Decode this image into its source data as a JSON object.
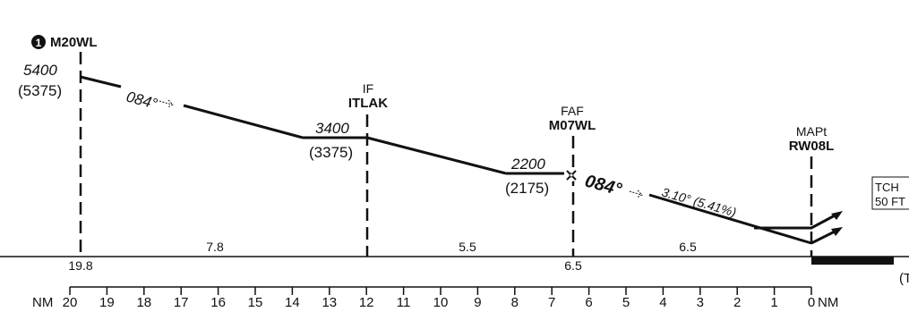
{
  "fixes": {
    "start": {
      "badge_num": "1",
      "ident": "M20WL",
      "alt": "5400",
      "msa": "(5375)",
      "course": "084°",
      "dist_mark": "19.8"
    },
    "if_fix": {
      "role": "IF",
      "ident": "ITLAK",
      "alt": "3400",
      "msa": "(3375)"
    },
    "faf": {
      "role": "FAF",
      "ident": "M07WL",
      "alt": "2200",
      "msa": "(2175)",
      "course": "084°",
      "glidepath": "3.10° (5.41%)",
      "dist_mark": "6.5"
    },
    "mapt": {
      "role": "MAPt",
      "ident": "RW08L"
    }
  },
  "segments": [
    "7.8",
    "5.5",
    "6.5"
  ],
  "tch": {
    "line1": "TCH",
    "line2": "50 FT"
  },
  "runway_ref": "(T",
  "scale": {
    "left_label": "NM",
    "right_label": "NM",
    "ticks": [
      "20",
      "19",
      "18",
      "17",
      "16",
      "15",
      "14",
      "13",
      "12",
      "11",
      "10",
      "9",
      "8",
      "7",
      "6",
      "5",
      "4",
      "3",
      "2",
      "1",
      "0"
    ]
  }
}
